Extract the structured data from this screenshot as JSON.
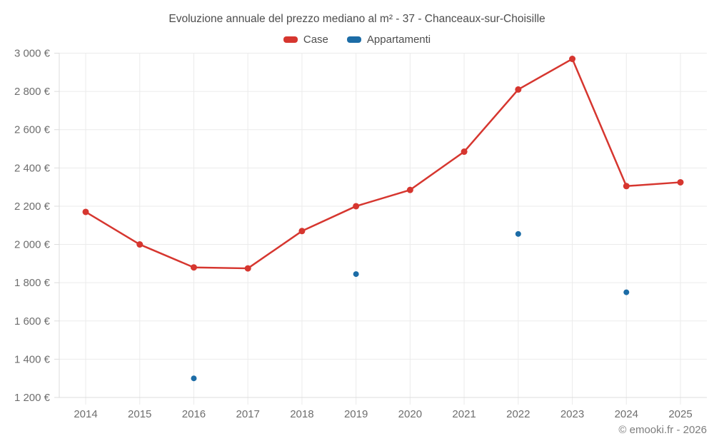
{
  "chart_data": {
    "type": "line",
    "title": "Evoluzione annuale del prezzo mediano al m² - 37 - Chanceaux-sur-Choisille",
    "x": [
      2014,
      2015,
      2016,
      2017,
      2018,
      2019,
      2020,
      2021,
      2022,
      2023,
      2024,
      2025
    ],
    "series": [
      {
        "name": "Case",
        "type": "line",
        "color": "#d6362f",
        "values": [
          2170,
          2000,
          1880,
          1875,
          2070,
          2200,
          2285,
          2485,
          2810,
          2970,
          2305,
          2325
        ]
      },
      {
        "name": "Appartamenti",
        "type": "scatter",
        "color": "#1c6ca6",
        "values": [
          null,
          null,
          1300,
          null,
          null,
          1845,
          null,
          null,
          2055,
          null,
          1750,
          null
        ]
      }
    ],
    "ylim": [
      1200,
      3000
    ],
    "ytick_step": 200,
    "y_unit": "€",
    "grid": true,
    "legend_position": "top"
  },
  "footer": {
    "copyright": "© emooki.fr - 2026"
  },
  "colors": {
    "gridline": "#ebebeb",
    "axis_line": "#dcdcdc",
    "tick_text": "#6e6e6e",
    "title_text": "#4d4d4d"
  }
}
